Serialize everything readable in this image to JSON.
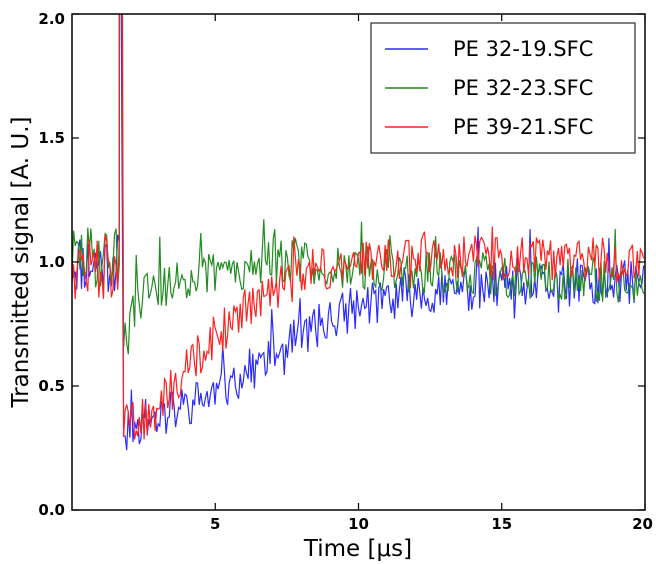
{
  "chart_data": {
    "type": "line",
    "title": "",
    "xlabel": "Time [μs]",
    "ylabel": "Transmitted signal [A. U.]",
    "xlim": [
      0,
      20
    ],
    "ylim": [
      0,
      2.0
    ],
    "x_ticks": [
      5,
      10,
      15,
      20
    ],
    "x_tick_labels": [
      "5",
      "10",
      "15",
      "20"
    ],
    "y_ticks": [
      0.0,
      0.5,
      1.0,
      1.5,
      2.0
    ],
    "y_tick_labels": [
      "0.0",
      "0.5",
      "1.0",
      "1.5",
      "2.0"
    ],
    "grid": false,
    "legend_position": "top-right",
    "noise_amplitude": 0.08,
    "spike_time": 1.65,
    "series": [
      {
        "name": "PE 32-19.SFC",
        "color": "#2b2bff",
        "pre_level": 1.0,
        "noise": 0.09,
        "x": [
          1.8,
          3,
          4,
          5,
          6,
          7,
          8,
          9,
          10,
          11,
          12,
          14,
          16,
          18,
          20
        ],
        "y": [
          0.32,
          0.38,
          0.42,
          0.47,
          0.55,
          0.62,
          0.7,
          0.77,
          0.82,
          0.85,
          0.87,
          0.89,
          0.9,
          0.91,
          0.92
        ]
      },
      {
        "name": "PE 32-23.SFC",
        "color": "#228b22",
        "pre_level": 1.02,
        "noise": 0.09,
        "x": [
          1.8,
          2.3,
          3,
          4,
          5,
          6,
          7,
          8,
          10,
          12,
          14,
          16,
          18,
          20
        ],
        "y": [
          0.65,
          0.85,
          0.9,
          0.93,
          0.96,
          0.98,
          1.0,
          1.0,
          0.98,
          0.96,
          0.95,
          0.94,
          0.93,
          0.92
        ]
      },
      {
        "name": "PE 39-21.SFC",
        "color": "#ff2020",
        "pre_level": 0.98,
        "noise": 0.09,
        "x": [
          1.8,
          3,
          4,
          5,
          6,
          7,
          8,
          9,
          10,
          12,
          14,
          16,
          18,
          20
        ],
        "y": [
          0.33,
          0.4,
          0.58,
          0.7,
          0.8,
          0.88,
          0.95,
          0.98,
          1.0,
          1.02,
          1.02,
          1.01,
          1.01,
          1.0
        ]
      }
    ]
  }
}
